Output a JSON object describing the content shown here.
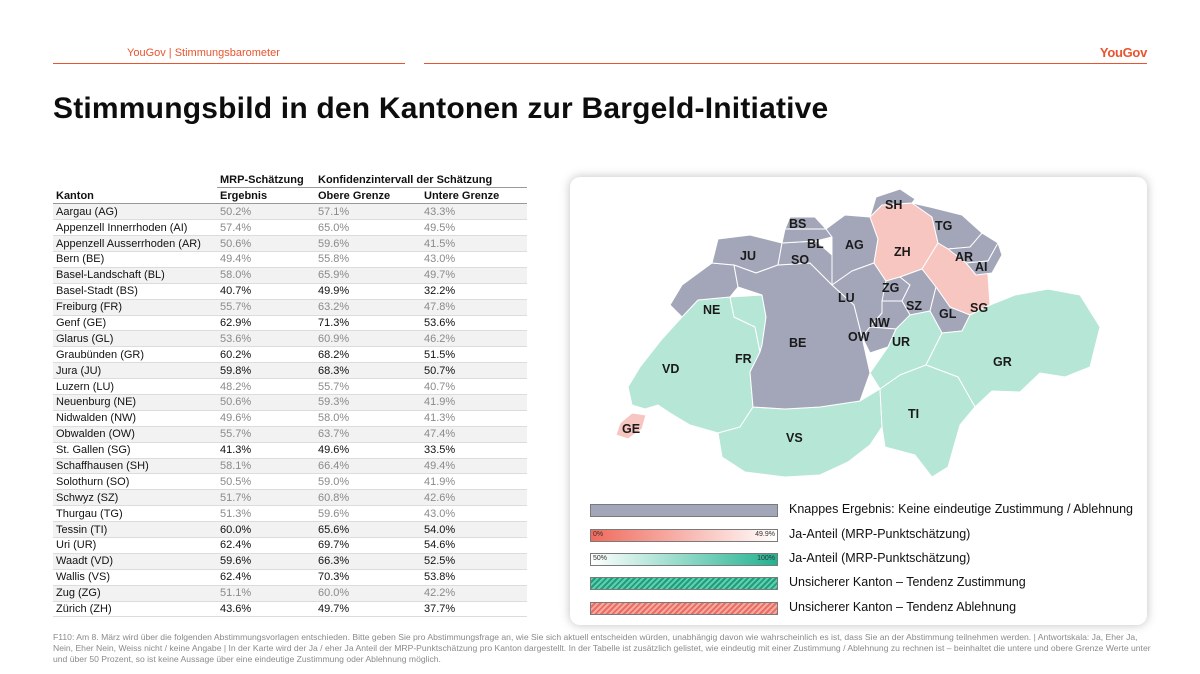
{
  "header": {
    "breadcrumb": "YouGov | Stimmungsbarometer",
    "logo": "YouGov",
    "title": "Stimmungsbild in den Kantonen zur Bargeld-Initiative"
  },
  "table": {
    "group_headers": [
      "MRP-Schätzung",
      "Konfidenzintervall der Schätzung"
    ],
    "columns": [
      "Kanton",
      "Ergebnis",
      "Obere Grenze",
      "Untere Grenze"
    ],
    "rows": [
      {
        "kanton": "Aargau (AG)",
        "ergebnis": "50.2%",
        "obere": "57.1%",
        "untere": "43.3%"
      },
      {
        "kanton": "Appenzell Innerrhoden (AI)",
        "ergebnis": "57.4%",
        "obere": "65.0%",
        "untere": "49.5%"
      },
      {
        "kanton": "Appenzell Ausserrhoden (AR)",
        "ergebnis": "50.6%",
        "obere": "59.6%",
        "untere": "41.5%"
      },
      {
        "kanton": "Bern (BE)",
        "ergebnis": "49.4%",
        "obere": "55.8%",
        "untere": "43.0%"
      },
      {
        "kanton": "Basel-Landschaft (BL)",
        "ergebnis": "58.0%",
        "obere": "65.9%",
        "untere": "49.7%"
      },
      {
        "kanton": "Basel-Stadt (BS)",
        "ergebnis": "40.7%",
        "obere": "49.9%",
        "untere": "32.2%"
      },
      {
        "kanton": "Freiburg (FR)",
        "ergebnis": "55.7%",
        "obere": "63.2%",
        "untere": "47.8%"
      },
      {
        "kanton": "Genf (GE)",
        "ergebnis": "62.9%",
        "obere": "71.3%",
        "untere": "53.6%"
      },
      {
        "kanton": "Glarus (GL)",
        "ergebnis": "53.6%",
        "obere": "60.9%",
        "untere": "46.2%"
      },
      {
        "kanton": "Graubünden (GR)",
        "ergebnis": "60.2%",
        "obere": "68.2%",
        "untere": "51.5%"
      },
      {
        "kanton": "Jura (JU)",
        "ergebnis": "59.8%",
        "obere": "68.3%",
        "untere": "50.7%"
      },
      {
        "kanton": "Luzern (LU)",
        "ergebnis": "48.2%",
        "obere": "55.7%",
        "untere": "40.7%"
      },
      {
        "kanton": "Neuenburg (NE)",
        "ergebnis": "50.6%",
        "obere": "59.3%",
        "untere": "41.9%"
      },
      {
        "kanton": "Nidwalden (NW)",
        "ergebnis": "49.6%",
        "obere": "58.0%",
        "untere": "41.3%"
      },
      {
        "kanton": "Obwalden (OW)",
        "ergebnis": "55.7%",
        "obere": "63.7%",
        "untere": "47.4%"
      },
      {
        "kanton": "St. Gallen (SG)",
        "ergebnis": "41.3%",
        "obere": "49.6%",
        "untere": "33.5%"
      },
      {
        "kanton": "Schaffhausen (SH)",
        "ergebnis": "58.1%",
        "obere": "66.4%",
        "untere": "49.4%"
      },
      {
        "kanton": "Solothurn (SO)",
        "ergebnis": "50.5%",
        "obere": "59.0%",
        "untere": "41.9%"
      },
      {
        "kanton": "Schwyz (SZ)",
        "ergebnis": "51.7%",
        "obere": "60.8%",
        "untere": "42.6%"
      },
      {
        "kanton": "Thurgau (TG)",
        "ergebnis": "51.3%",
        "obere": "59.6%",
        "untere": "43.0%"
      },
      {
        "kanton": "Tessin (TI)",
        "ergebnis": "60.0%",
        "obere": "65.6%",
        "untere": "54.0%"
      },
      {
        "kanton": "Uri (UR)",
        "ergebnis": "62.4%",
        "obere": "69.7%",
        "untere": "54.6%"
      },
      {
        "kanton": "Waadt (VD)",
        "ergebnis": "59.6%",
        "obere": "66.3%",
        "untere": "52.5%"
      },
      {
        "kanton": "Wallis (VS)",
        "ergebnis": "62.4%",
        "obere": "70.3%",
        "untere": "53.8%"
      },
      {
        "kanton": "Zug (ZG)",
        "ergebnis": "51.1%",
        "obere": "60.0%",
        "untere": "42.2%"
      },
      {
        "kanton": "Zürich (ZH)",
        "ergebnis": "43.6%",
        "obere": "49.7%",
        "untere": "37.7%"
      }
    ]
  },
  "map": {
    "labels": [
      "SH",
      "BS",
      "TG",
      "BL",
      "AG",
      "ZH",
      "JU",
      "SO",
      "AR",
      "AI",
      "LU",
      "ZG",
      "NE",
      "SZ",
      "SG",
      "GL",
      "NW",
      "OW",
      "UR",
      "FR",
      "BE",
      "VD",
      "GR",
      "TI",
      "GE",
      "VS"
    ]
  },
  "legend": {
    "items": [
      "Knappes Ergebnis: Keine eindeutige Zustimmung / Ablehnung",
      "Ja-Anteil (MRP-Punktschätzung)",
      "Ja-Anteil (MRP-Punktschätzung)",
      "Unsicherer Kanton – Tendenz Zustimmung",
      "Unsicherer Kanton – Tendenz Ablehnung"
    ],
    "red_scale": {
      "min": "0%",
      "max": "49.9%"
    },
    "green_scale": {
      "min": "50%",
      "max": "100%"
    }
  },
  "colors": {
    "accent": "#e8542e",
    "close_result": "#a3a6b8",
    "approve": "#b5e6d6",
    "reject": "#f7c6c0"
  },
  "footnote": "F110: Am 8. März wird über die folgenden Abstimmungsvorlagen entschieden. Bitte geben Sie pro Abstimmungsfrage an, wie Sie sich aktuell entscheiden würden, unabhängig davon wie wahrscheinlich es ist, dass Sie an der Abstimmung teilnehmen werden. | Antwortskala: Ja, Eher Ja, Nein, Eher Nein, Weiss nicht / keine Angabe | In der Karte wird der Ja / eher Ja Anteil der MRP-Punktschätzung pro Kanton dargestellt. In der Tabelle ist zusätzlich gelistet, wie eindeutig mit einer Zustimmung / Ablehnung zu rechnen ist – beinhaltet die untere und obere Grenze Werte unter und über 50 Prozent, so ist keine Aussage über eine eindeutige Zustimmung oder Ablehnung möglich."
}
